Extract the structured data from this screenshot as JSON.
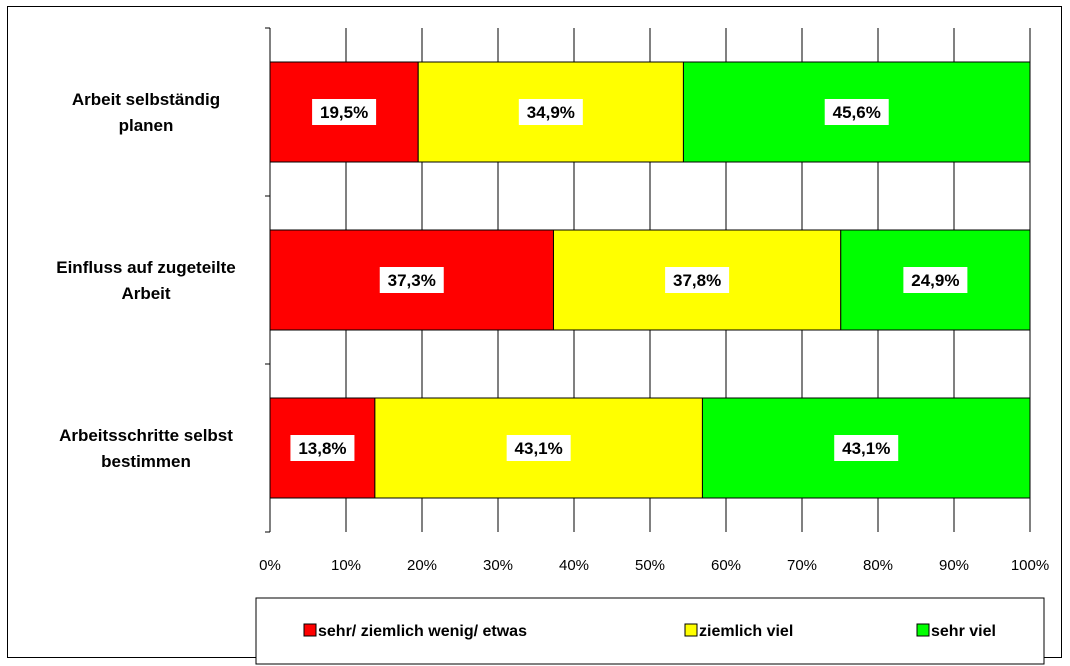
{
  "chart_data": {
    "type": "bar",
    "orientation": "horizontal",
    "stacked": "percent",
    "categories": [
      [
        "Arbeit selbständig",
        "planen"
      ],
      [
        "Einfluss auf zugeteilte",
        "Arbeit"
      ],
      [
        "Arbeitsschritte selbst",
        "bestimmen"
      ]
    ],
    "series": [
      {
        "name": "sehr/ ziemlich wenig/ etwas",
        "color": "#ff0000",
        "values": [
          19.5,
          37.3,
          13.8
        ],
        "labels": [
          "19,5%",
          "37,3%",
          "13,8%"
        ]
      },
      {
        "name": "ziemlich viel",
        "color": "#ffff00",
        "values": [
          34.9,
          37.8,
          43.1
        ],
        "labels": [
          "34,9%",
          "37,8%",
          "43,1%"
        ]
      },
      {
        "name": "sehr viel",
        "color": "#00ff00",
        "values": [
          45.6,
          24.9,
          43.1
        ],
        "labels": [
          "45,6%",
          "24,9%",
          "43,1%"
        ]
      }
    ],
    "x_ticks": [
      "0%",
      "10%",
      "20%",
      "30%",
      "40%",
      "50%",
      "60%",
      "70%",
      "80%",
      "90%",
      "100%"
    ],
    "xlim": [
      0,
      100
    ],
    "grid": true,
    "legend_position": "bottom"
  }
}
